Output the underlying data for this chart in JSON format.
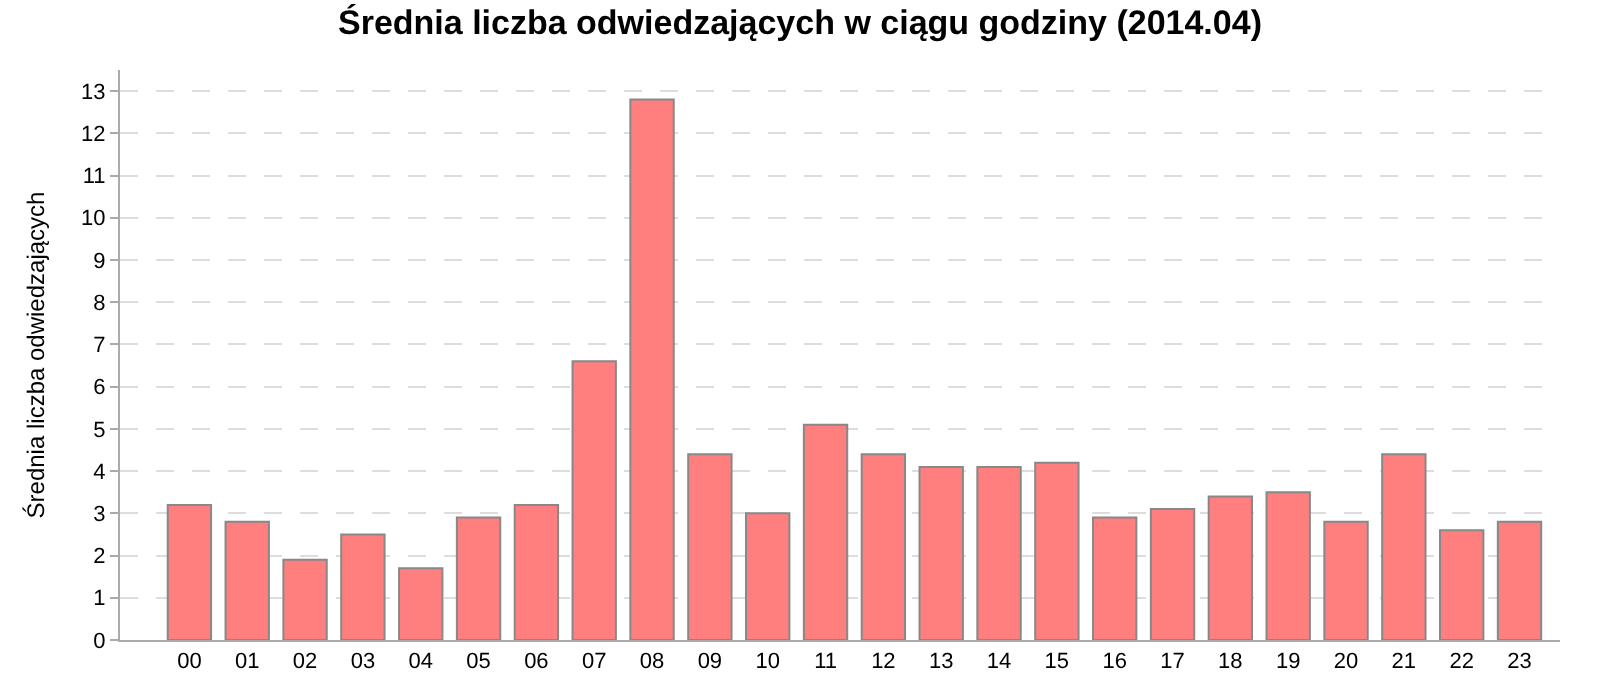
{
  "chart_data": {
    "type": "bar",
    "title": "Średnia liczba odwiedzających w ciągu godziny (2014.04)",
    "ylabel": "Średnia liczba odwiedzających",
    "categories": [
      "00",
      "01",
      "02",
      "03",
      "04",
      "05",
      "06",
      "07",
      "08",
      "09",
      "10",
      "11",
      "12",
      "13",
      "14",
      "15",
      "16",
      "17",
      "18",
      "19",
      "20",
      "21",
      "22",
      "23"
    ],
    "values": [
      3.2,
      2.8,
      1.9,
      2.5,
      1.7,
      2.9,
      3.2,
      6.6,
      12.8,
      4.4,
      3.0,
      5.1,
      4.4,
      4.1,
      4.1,
      4.2,
      2.9,
      3.1,
      3.4,
      3.5,
      2.8,
      4.4,
      2.6,
      2.8
    ],
    "color": "#ff7f7f",
    "ylim": [
      0,
      13.5
    ],
    "yticks": [
      0,
      1,
      2,
      3,
      4,
      5,
      6,
      7,
      8,
      9,
      10,
      11,
      12,
      13
    ],
    "grid": "y",
    "legend": false
  }
}
